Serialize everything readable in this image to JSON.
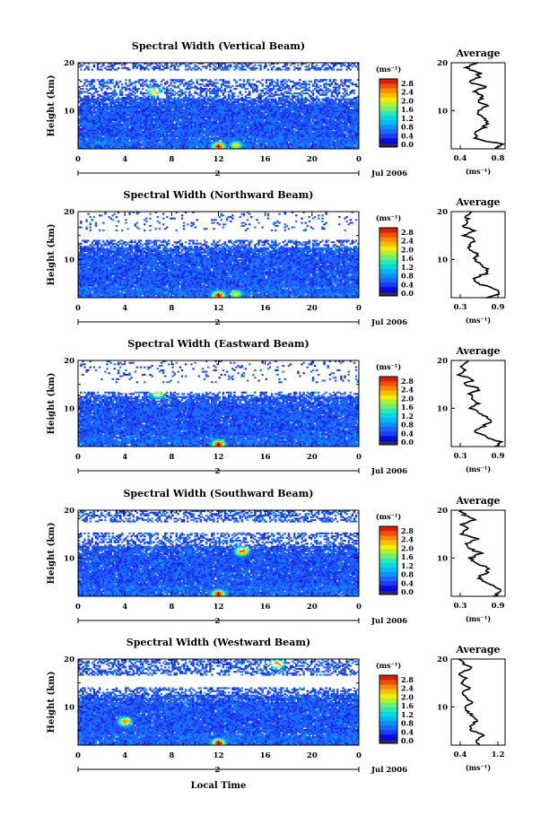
{
  "figure": {
    "xlabel": "Local Time",
    "date_label": "Jul 2006",
    "day_label": "2",
    "ylabel": "Height (km)",
    "units": "(ms⁻¹)",
    "avg_title": "Average",
    "avg_xlabel": "(ms⁻¹)",
    "x_ticks": [
      "0",
      "4",
      "8",
      "12",
      "16",
      "20",
      "0"
    ],
    "y_ticks": [
      "20",
      "10"
    ],
    "colorbar_ticks": [
      "2.8",
      "2.4",
      "2.0",
      "1.6",
      "1.2",
      "0.8",
      "0.4",
      "0.0"
    ]
  },
  "chart_data": [
    {
      "type": "heatmap",
      "title": "Spectral Width (Vertical Beam)",
      "xlabel": "Local Time",
      "ylabel": "Height (km)",
      "xlim": [
        0,
        24
      ],
      "ylim": [
        2,
        20
      ],
      "colorbar": {
        "label": "(ms⁻¹)",
        "range": [
          0.0,
          2.8
        ],
        "ticks": [
          0.0,
          0.4,
          0.8,
          1.2,
          1.6,
          2.0,
          2.4,
          2.8
        ]
      },
      "features": {
        "top_km": 20,
        "gap_km": [
          16.5,
          18.5
        ],
        "hotspots": [
          {
            "time": 12,
            "height_km": 2.5,
            "value": 2.8
          },
          {
            "time": 13.5,
            "height_km": 2.8,
            "value": 2.0
          },
          {
            "time": 6.5,
            "height_km": 14,
            "value": 2.2
          }
        ]
      },
      "average_profile": {
        "title": "Average",
        "xlabel": "(ms⁻¹)",
        "xticks": [
          "0.4",
          "0.8"
        ],
        "xlim": [
          0.3,
          0.9
        ],
        "height_km": [
          2,
          3,
          4,
          5,
          6,
          7,
          8,
          9,
          10,
          11,
          12,
          13,
          14,
          15,
          16,
          17,
          18,
          19,
          20
        ],
        "values": [
          0.78,
          0.85,
          0.6,
          0.55,
          0.62,
          0.7,
          0.68,
          0.62,
          0.58,
          0.72,
          0.6,
          0.66,
          0.55,
          0.7,
          0.5,
          0.6,
          0.62,
          0.45,
          0.6
        ]
      }
    },
    {
      "type": "heatmap",
      "title": "Spectral Width (Northward Beam)",
      "xlabel": "Local Time",
      "ylabel": "Height (km)",
      "xlim": [
        0,
        24
      ],
      "ylim": [
        2,
        20
      ],
      "colorbar": {
        "label": "(ms⁻¹)",
        "range": [
          0.0,
          2.8
        ],
        "ticks": [
          0.0,
          0.4,
          0.8,
          1.2,
          1.6,
          2.0,
          2.4,
          2.8
        ]
      },
      "features": {
        "top_km": 13,
        "gap_km": [
          14,
          16
        ],
        "hotspots": [
          {
            "time": 12,
            "height_km": 2.5,
            "value": 2.8
          },
          {
            "time": 13.5,
            "height_km": 2.8,
            "value": 2.0
          }
        ]
      },
      "average_profile": {
        "title": "Average",
        "xlabel": "(ms⁻¹)",
        "xticks": [
          "0.3",
          "0.9"
        ],
        "xlim": [
          0.3,
          0.9
        ],
        "height_km": [
          2,
          3,
          4,
          5,
          6,
          7,
          8,
          9,
          10,
          11,
          12,
          13,
          14,
          15,
          16,
          17,
          18,
          19,
          20
        ],
        "values": [
          0.72,
          0.85,
          0.78,
          0.6,
          0.55,
          0.68,
          0.72,
          0.62,
          0.55,
          0.6,
          0.52,
          0.48,
          0.58,
          0.45,
          0.55,
          0.42,
          0.5,
          0.45,
          0.55
        ]
      }
    },
    {
      "type": "heatmap",
      "title": "Spectral Width (Eastward Beam)",
      "xlabel": "Local Time",
      "ylabel": "Height (km)",
      "xlim": [
        0,
        24
      ],
      "ylim": [
        2,
        20
      ],
      "colorbar": {
        "label": "(ms⁻¹)",
        "range": [
          0.0,
          2.8
        ],
        "ticks": [
          0.0,
          0.4,
          0.8,
          1.2,
          1.6,
          2.0,
          2.4,
          2.8
        ]
      },
      "features": {
        "top_km": 12,
        "gap_km": [
          13.5,
          15.5
        ],
        "hotspots": [
          {
            "time": 12,
            "height_km": 2.5,
            "value": 2.8
          },
          {
            "time": 6.8,
            "height_km": 13,
            "value": 2.0
          }
        ]
      },
      "average_profile": {
        "title": "Average",
        "xlabel": "(ms⁻¹)",
        "xticks": [
          "0.3",
          "0.9"
        ],
        "xlim": [
          0.3,
          0.9
        ],
        "height_km": [
          2,
          3,
          4,
          5,
          6,
          7,
          8,
          9,
          10,
          11,
          12,
          13,
          14,
          15,
          16,
          17,
          18,
          19,
          20
        ],
        "values": [
          0.8,
          0.85,
          0.7,
          0.58,
          0.62,
          0.75,
          0.7,
          0.6,
          0.52,
          0.6,
          0.55,
          0.5,
          0.62,
          0.45,
          0.55,
          0.4,
          0.48,
          0.42,
          0.5
        ]
      }
    },
    {
      "type": "heatmap",
      "title": "Spectral Width (Southward Beam)",
      "xlabel": "Local Time",
      "ylabel": "Height (km)",
      "xlim": [
        0,
        24
      ],
      "ylim": [
        2,
        20
      ],
      "colorbar": {
        "label": "(ms⁻¹)",
        "range": [
          0.0,
          2.8
        ],
        "ticks": [
          0.0,
          0.4,
          0.8,
          1.2,
          1.6,
          2.0,
          2.4,
          2.8
        ]
      },
      "features": {
        "top_km": 20,
        "gap_km": [
          15.5,
          17.5
        ],
        "hotspots": [
          {
            "time": 12,
            "height_km": 2.5,
            "value": 2.8
          },
          {
            "time": 14,
            "height_km": 11.5,
            "value": 2.6
          }
        ]
      },
      "average_profile": {
        "title": "Average",
        "xlabel": "(ms⁻¹)",
        "xticks": [
          "0.3",
          "0.9"
        ],
        "xlim": [
          0.3,
          0.9
        ],
        "height_km": [
          2,
          3,
          4,
          5,
          6,
          7,
          8,
          9,
          10,
          11,
          12,
          13,
          14,
          15,
          16,
          17,
          18,
          19,
          20
        ],
        "values": [
          0.78,
          0.85,
          0.8,
          0.65,
          0.6,
          0.72,
          0.7,
          0.58,
          0.52,
          0.62,
          0.5,
          0.46,
          0.6,
          0.4,
          0.5,
          0.42,
          0.55,
          0.45,
          0.4
        ]
      }
    },
    {
      "type": "heatmap",
      "title": "Spectral Width (Westward Beam)",
      "xlabel": "Local Time",
      "ylabel": "Height (km)",
      "xlim": [
        0,
        24
      ],
      "ylim": [
        2,
        20
      ],
      "colorbar": {
        "label": "(ms⁻¹)",
        "range": [
          0.0,
          2.8
        ],
        "ticks": [
          0.0,
          0.4,
          0.8,
          1.2,
          1.6,
          2.0,
          2.4,
          2.8
        ]
      },
      "features": {
        "top_km": 20,
        "gap_km": [
          14,
          16.5
        ],
        "hotspots": [
          {
            "time": 12,
            "height_km": 2.5,
            "value": 2.8
          },
          {
            "time": 4,
            "height_km": 7,
            "value": 2.4
          },
          {
            "time": 17,
            "height_km": 19,
            "value": 2.6
          }
        ]
      },
      "average_profile": {
        "title": "Average",
        "xlabel": "(ms⁻¹)",
        "xticks": [
          "0.4",
          "1.2"
        ],
        "xlim": [
          0.35,
          1.25
        ],
        "height_km": [
          2,
          3,
          4,
          5,
          6,
          7,
          8,
          9,
          10,
          11,
          12,
          13,
          14,
          15,
          16,
          17,
          18,
          19,
          20
        ],
        "values": [
          0.8,
          0.75,
          0.9,
          0.7,
          0.65,
          0.78,
          0.72,
          0.62,
          0.6,
          0.7,
          0.58,
          0.55,
          0.65,
          0.5,
          0.6,
          0.48,
          0.7,
          0.55,
          0.5
        ]
      }
    }
  ]
}
